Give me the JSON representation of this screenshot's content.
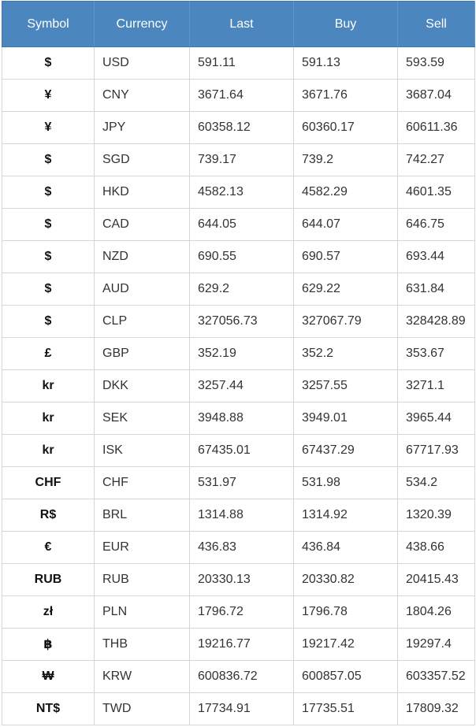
{
  "headers": {
    "symbol": "Symbol",
    "currency": "Currency",
    "last": "Last",
    "buy": "Buy",
    "sell": "Sell"
  },
  "rows": [
    {
      "symbol": "$",
      "currency": "USD",
      "last": "591.11",
      "buy": "591.13",
      "sell": "593.59"
    },
    {
      "symbol": "¥",
      "currency": "CNY",
      "last": "3671.64",
      "buy": "3671.76",
      "sell": "3687.04"
    },
    {
      "symbol": "¥",
      "currency": "JPY",
      "last": "60358.12",
      "buy": "60360.17",
      "sell": "60611.36"
    },
    {
      "symbol": "$",
      "currency": "SGD",
      "last": "739.17",
      "buy": "739.2",
      "sell": "742.27"
    },
    {
      "symbol": "$",
      "currency": "HKD",
      "last": "4582.13",
      "buy": "4582.29",
      "sell": "4601.35"
    },
    {
      "symbol": "$",
      "currency": "CAD",
      "last": "644.05",
      "buy": "644.07",
      "sell": "646.75"
    },
    {
      "symbol": "$",
      "currency": "NZD",
      "last": "690.55",
      "buy": "690.57",
      "sell": "693.44"
    },
    {
      "symbol": "$",
      "currency": "AUD",
      "last": "629.2",
      "buy": "629.22",
      "sell": "631.84"
    },
    {
      "symbol": "$",
      "currency": "CLP",
      "last": "327056.73",
      "buy": "327067.79",
      "sell": "328428.89"
    },
    {
      "symbol": "£",
      "currency": "GBP",
      "last": "352.19",
      "buy": "352.2",
      "sell": "353.67"
    },
    {
      "symbol": "kr",
      "currency": "DKK",
      "last": "3257.44",
      "buy": "3257.55",
      "sell": "3271.1"
    },
    {
      "symbol": "kr",
      "currency": "SEK",
      "last": "3948.88",
      "buy": "3949.01",
      "sell": "3965.44"
    },
    {
      "symbol": "kr",
      "currency": "ISK",
      "last": "67435.01",
      "buy": "67437.29",
      "sell": "67717.93"
    },
    {
      "symbol": "CHF",
      "currency": "CHF",
      "last": "531.97",
      "buy": "531.98",
      "sell": "534.2"
    },
    {
      "symbol": "R$",
      "currency": "BRL",
      "last": "1314.88",
      "buy": "1314.92",
      "sell": "1320.39"
    },
    {
      "symbol": "€",
      "currency": "EUR",
      "last": "436.83",
      "buy": "436.84",
      "sell": "438.66"
    },
    {
      "symbol": "RUB",
      "currency": "RUB",
      "last": "20330.13",
      "buy": "20330.82",
      "sell": "20415.43"
    },
    {
      "symbol": "zł",
      "currency": "PLN",
      "last": "1796.72",
      "buy": "1796.78",
      "sell": "1804.26"
    },
    {
      "symbol": "฿",
      "currency": "THB",
      "last": "19216.77",
      "buy": "19217.42",
      "sell": "19297.4"
    },
    {
      "symbol": "₩",
      "currency": "KRW",
      "last": "600836.72",
      "buy": "600857.05",
      "sell": "603357.52"
    },
    {
      "symbol": "NT$",
      "currency": "TWD",
      "last": "17734.91",
      "buy": "17735.51",
      "sell": "17809.32"
    }
  ]
}
